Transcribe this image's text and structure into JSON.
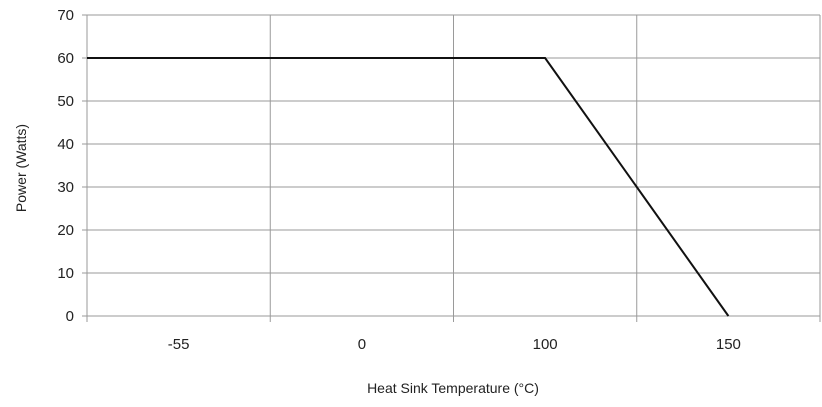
{
  "chart_data": {
    "type": "line",
    "title": "",
    "xlabel": "Heat Sink Temperature (°C)",
    "ylabel": "Power (Watts)",
    "x_categories": [
      "-55",
      "0",
      "100",
      "150"
    ],
    "ylim": [
      0,
      70
    ],
    "yticks": [
      "0",
      "10",
      "20",
      "30",
      "40",
      "50",
      "60",
      "70"
    ],
    "grid": true,
    "series": [
      {
        "name": "",
        "points": [
          {
            "x": -55,
            "y": 60
          },
          {
            "x": 100,
            "y": 60
          },
          {
            "x": 150,
            "y": 0
          }
        ]
      }
    ],
    "colors": {
      "line": "#111111",
      "grid": "#9a9a9a",
      "axis": "#9a9a9a"
    }
  }
}
